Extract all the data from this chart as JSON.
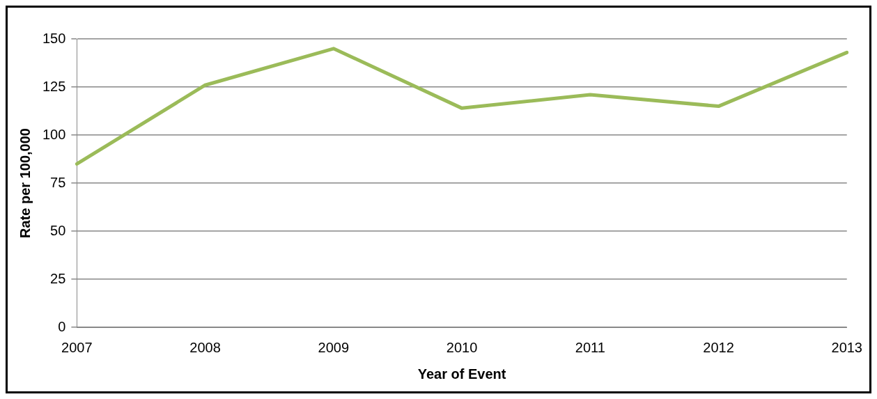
{
  "chart_data": {
    "type": "line",
    "xlabel": "Year of Event",
    "ylabel": "Rate per 100,000",
    "categories": [
      "2007",
      "2008",
      "2009",
      "2010",
      "2011",
      "2012",
      "2013"
    ],
    "series": [
      {
        "color": "#9bbb59",
        "values": [
          85,
          126,
          145,
          114,
          121,
          115,
          143
        ]
      }
    ],
    "ylim": [
      0,
      150
    ],
    "yticks": [
      0,
      25,
      50,
      75,
      100,
      125,
      150
    ],
    "grid": "y",
    "legend": false,
    "marker": "none",
    "line_style": "solid"
  }
}
